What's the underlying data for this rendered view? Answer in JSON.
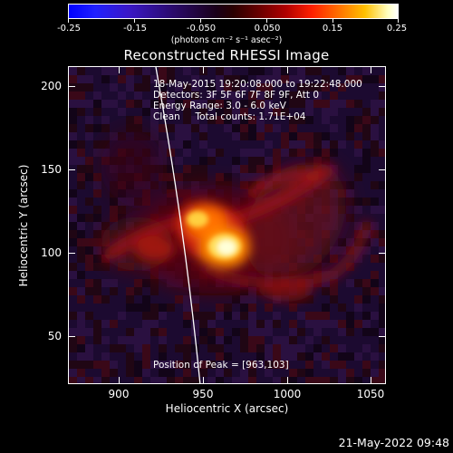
{
  "colorbar": {
    "tick_labels": [
      "-0.25",
      "-0.15",
      "-0.050",
      "0.050",
      "0.15",
      "0.25"
    ],
    "unit_label": "(photons cm⁻² s⁻¹ asec⁻²)"
  },
  "title": "Reconstructed RHESSI Image",
  "plot": {
    "info_lines": [
      "18-May-2015 19:20:08.000 to 19:22:48.000",
      "Detectors: 3F 5F 6F 7F 8F 9F, Att 0",
      "Energy Range: 3.0 - 6.0 keV",
      "Clean     Total counts: 1.71E+04"
    ],
    "peak_label": "Position of Peak = [963,103]",
    "x_ticks": [
      "900",
      "950",
      "1000",
      "1050"
    ],
    "y_ticks": [
      "200",
      "150",
      "100",
      "50"
    ],
    "x_axis_label": "Heliocentric X (arcsec)",
    "y_axis_label": "Heliocentric Y (arcsec)",
    "peak": {
      "x": 963,
      "y": 103
    },
    "x_range": [
      867,
      1061
    ],
    "y_range": [
      18,
      212
    ],
    "colors": {
      "limb": "#ffffff",
      "background": "#000000"
    }
  },
  "footer": {
    "date": "21-May-2022 09:48"
  }
}
